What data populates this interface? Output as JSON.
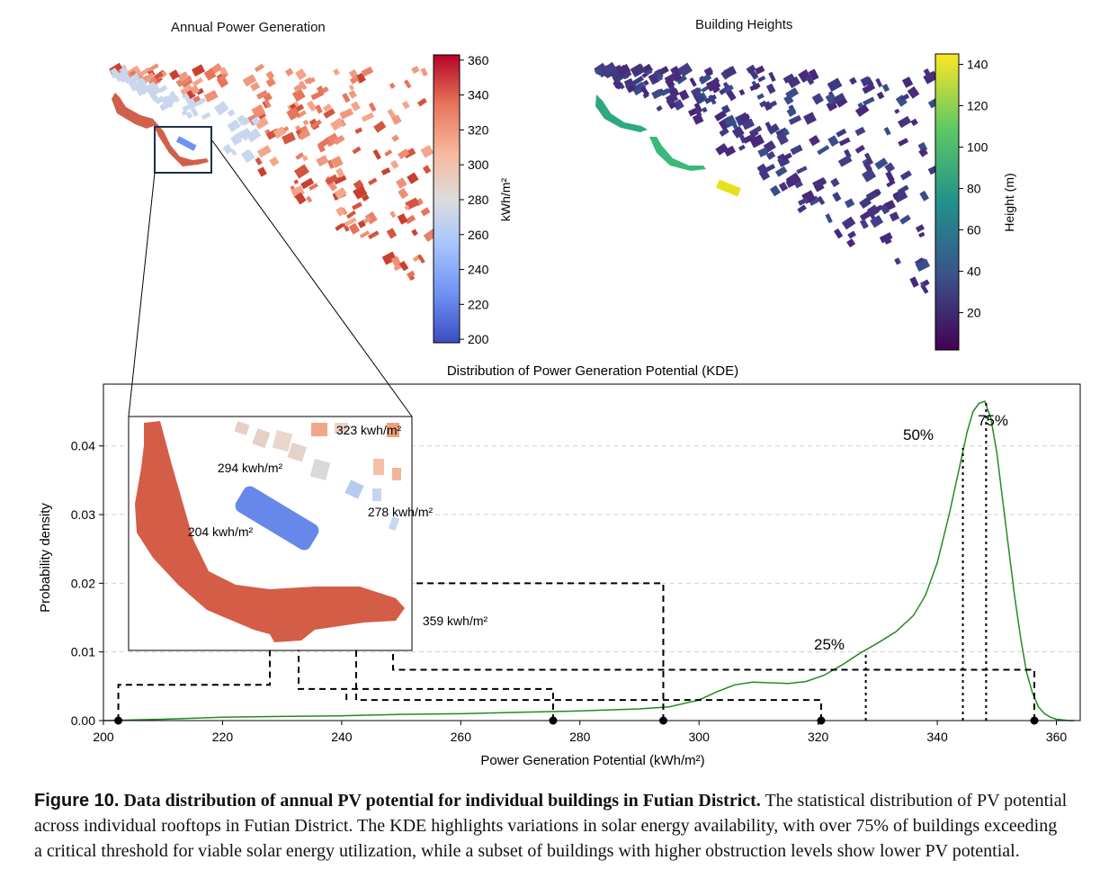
{
  "panels": {
    "left_title": "Annual Power Generation",
    "right_title": "Building Heights",
    "left_colorbar": {
      "label": "kWh/m²",
      "ticks": [
        "200",
        "220",
        "240",
        "260",
        "280",
        "300",
        "320",
        "340",
        "360"
      ],
      "min": 198,
      "max": 363,
      "colors": [
        "#3b4cc0",
        "#6f92f3",
        "#aac7fd",
        "#dddcdc",
        "#f7b89c",
        "#e7745b",
        "#b40426"
      ]
    },
    "right_colorbar": {
      "label": "Height (m)",
      "ticks": [
        "20",
        "40",
        "60",
        "80",
        "100",
        "120",
        "140"
      ],
      "min": 2,
      "max": 145,
      "colors": [
        "#440154",
        "#3b528b",
        "#21918c",
        "#5ec962",
        "#fde725"
      ]
    }
  },
  "chart_data": {
    "type": "line",
    "title": "Distribution of Power Generation Potential (KDE)",
    "xlabel": "Power Generation Potential (kWh/m²)",
    "ylabel": "Probability density",
    "xlim": [
      200,
      364
    ],
    "ylim": [
      0,
      0.049
    ],
    "xticks": [
      "200",
      "220",
      "240",
      "260",
      "280",
      "300",
      "320",
      "340",
      "360"
    ],
    "yticks": [
      "0.00",
      "0.01",
      "0.02",
      "0.03",
      "0.04"
    ],
    "grid": "horizontal dashed",
    "line_color": "#228b22",
    "kde": {
      "x": [
        200,
        210,
        220,
        230,
        240,
        250,
        260,
        270,
        280,
        290,
        295,
        300,
        303,
        306,
        309,
        312,
        315,
        318,
        321,
        324,
        327,
        330,
        333,
        336,
        338,
        340,
        342,
        344,
        345,
        346,
        347,
        348,
        349,
        350,
        351,
        352,
        353,
        354,
        355,
        356,
        357,
        358,
        359,
        360,
        361,
        362,
        363
      ],
      "y": [
        0.0,
        0.0002,
        0.0005,
        0.0006,
        0.0007,
        0.0009,
        0.001,
        0.0012,
        0.0014,
        0.0017,
        0.002,
        0.003,
        0.0042,
        0.0052,
        0.0056,
        0.0055,
        0.0054,
        0.0057,
        0.0066,
        0.0081,
        0.0098,
        0.0113,
        0.0129,
        0.0153,
        0.0182,
        0.023,
        0.03,
        0.038,
        0.042,
        0.045,
        0.0462,
        0.0465,
        0.044,
        0.039,
        0.032,
        0.025,
        0.018,
        0.012,
        0.007,
        0.004,
        0.002,
        0.001,
        0.0005,
        0.0002,
        0.0001,
        0.0,
        0.0
      ]
    },
    "percentiles": [
      {
        "label": "25%",
        "x": 328,
        "y": 0.0098
      },
      {
        "label": "50%",
        "x": 344.3,
        "y": 0.0397
      },
      {
        "label": "75%",
        "x": 348.2,
        "y": 0.0463
      }
    ],
    "samples": [
      {
        "label": "204",
        "x": 202.5,
        "level": 0.0052
      },
      {
        "label": "294",
        "x": 275.5,
        "level": 0.0046
      },
      {
        "label": "323",
        "x": 294.0,
        "level": 0.02
      },
      {
        "label": "278",
        "x": 320.5,
        "level": 0.003
      },
      {
        "label": "359",
        "x": 356.3,
        "level": 0.0074
      }
    ],
    "inset_labels": [
      {
        "text": "323 kwh/m²",
        "value": 323
      },
      {
        "text": "294 kwh/m²",
        "value": 294
      },
      {
        "text": "278 kwh/m²",
        "value": 278
      },
      {
        "text": "204  kwh/m²",
        "value": 204
      },
      {
        "text": "359 kwh/m²",
        "value": 359
      }
    ]
  },
  "caption": {
    "number": "Figure 10.",
    "title": "Data distribution of annual PV potential for individual buildings in Futian District.",
    "body": "The statistical distribution of PV potential across individual rooftops in Futian District. The KDE highlights variations in solar energy availability, with over 75% of buildings exceeding a critical threshold for viable solar energy utilization, while a subset of buildings with higher obstruction levels show lower PV potential."
  }
}
